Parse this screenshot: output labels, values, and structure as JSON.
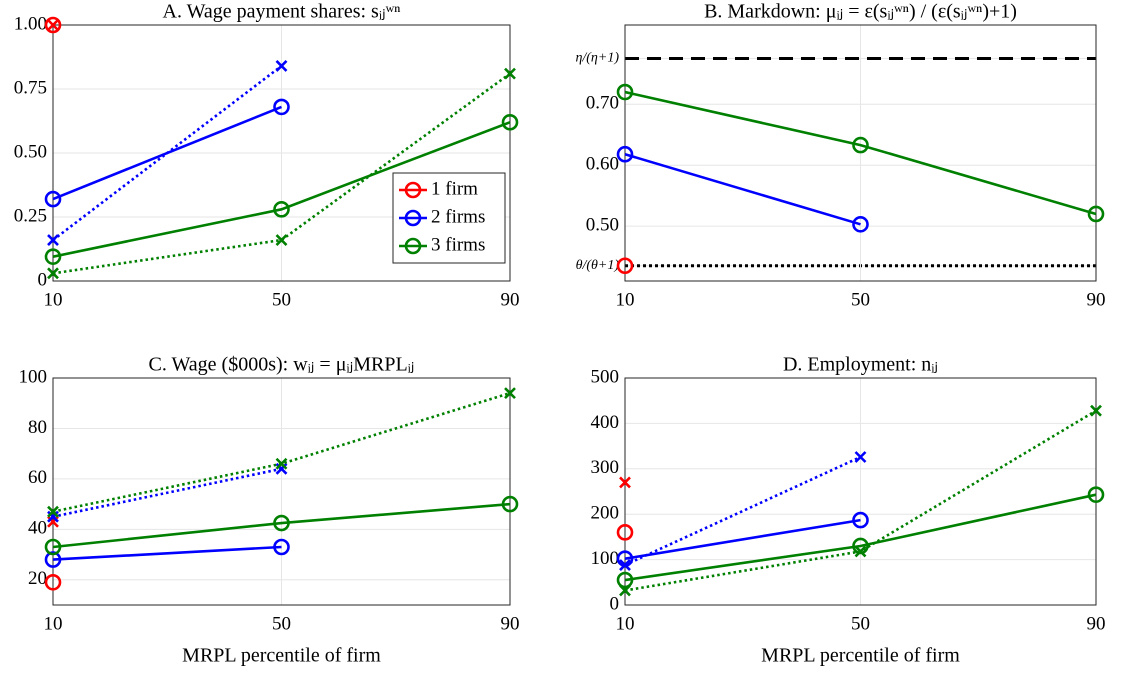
{
  "chart_data": [
    {
      "type": "line",
      "title": "A. Wage payment shares: sᵢⱼʷⁿ",
      "x": [
        10,
        50,
        90
      ],
      "xlim": [
        10,
        90
      ],
      "xticks": [
        10,
        50,
        90
      ],
      "ylim": [
        0,
        1
      ],
      "yticks": [
        0,
        0.25,
        {
          "value": 0.5,
          "label": "0.50"
        },
        0.75,
        {
          "value": 1,
          "label": "1.00"
        }
      ],
      "grid": true,
      "legend": "east",
      "series": [
        {
          "name": "1 firm",
          "color": "#ff0000",
          "values": [
            1.0,
            null,
            null
          ],
          "dotted_values": [
            1.0,
            null,
            null
          ]
        },
        {
          "name": "2 firms",
          "color": "#0000ff",
          "values": [
            0.32,
            0.68,
            null
          ],
          "dotted_values": [
            0.16,
            0.84,
            null
          ]
        },
        {
          "name": "3 firms",
          "color": "#008000",
          "values": [
            0.095,
            0.28,
            0.62
          ],
          "dotted_values": [
            0.03,
            0.16,
            0.81
          ]
        }
      ]
    },
    {
      "type": "line",
      "title": "B. Markdown: μᵢⱼ = ε(sᵢⱼʷⁿ) / (ε(sᵢⱼʷⁿ)+1)",
      "x": [
        10,
        50,
        90
      ],
      "xlim": [
        10,
        90
      ],
      "xticks": [
        10,
        50,
        90
      ],
      "ylim": [
        0.41,
        0.83
      ],
      "yticks": [
        {
          "value": 0.435,
          "label": "θ/(θ+1)",
          "line": "dotted"
        },
        {
          "value": 0.5,
          "label": "0.50"
        },
        {
          "value": 0.6,
          "label": "0.60"
        },
        {
          "value": 0.7,
          "label": "0.70"
        },
        {
          "value": 0.775,
          "label": "η/(η+1)",
          "line": "dashed"
        }
      ],
      "grid": true,
      "series": [
        {
          "color": "#ff0000",
          "values": [
            0.435,
            null,
            null
          ]
        },
        {
          "color": "#0000ff",
          "values": [
            0.618,
            0.503,
            null
          ]
        },
        {
          "color": "#008000",
          "values": [
            0.72,
            0.633,
            0.52
          ]
        }
      ]
    },
    {
      "type": "line",
      "title": "C. Wage ($000s): wᵢⱼ = μᵢⱼMRPLᵢⱼ",
      "xlabel": "MRPL percentile of firm",
      "x": [
        10,
        50,
        90
      ],
      "xlim": [
        10,
        90
      ],
      "xticks": [
        10,
        50,
        90
      ],
      "ylim": [
        10,
        100
      ],
      "yticks": [
        20,
        40,
        60,
        80,
        100
      ],
      "grid": true,
      "series": [
        {
          "color": "#ff0000",
          "values": [
            19,
            null,
            null
          ],
          "dotted_values": [
            43,
            null,
            null
          ]
        },
        {
          "color": "#0000ff",
          "values": [
            28,
            33,
            null
          ],
          "dotted_values": [
            45,
            64,
            null
          ]
        },
        {
          "color": "#008000",
          "values": [
            33,
            42.5,
            50
          ],
          "dotted_values": [
            47,
            66,
            94
          ]
        }
      ]
    },
    {
      "type": "line",
      "title": "D. Employment: nᵢⱼ",
      "xlabel": "MRPL percentile of firm",
      "x": [
        10,
        50,
        90
      ],
      "xlim": [
        10,
        90
      ],
      "xticks": [
        10,
        50,
        90
      ],
      "ylim": [
        0,
        500
      ],
      "yticks": [
        0,
        100,
        200,
        300,
        400,
        500
      ],
      "grid": true,
      "series": [
        {
          "color": "#ff0000",
          "values": [
            160,
            null,
            null
          ],
          "dotted_values": [
            270,
            null,
            null
          ]
        },
        {
          "color": "#0000ff",
          "values": [
            102,
            187,
            null
          ],
          "dotted_values": [
            88,
            326,
            null
          ]
        },
        {
          "color": "#008000",
          "values": [
            55,
            130,
            243
          ],
          "dotted_values": [
            32,
            118,
            428
          ]
        }
      ]
    }
  ]
}
